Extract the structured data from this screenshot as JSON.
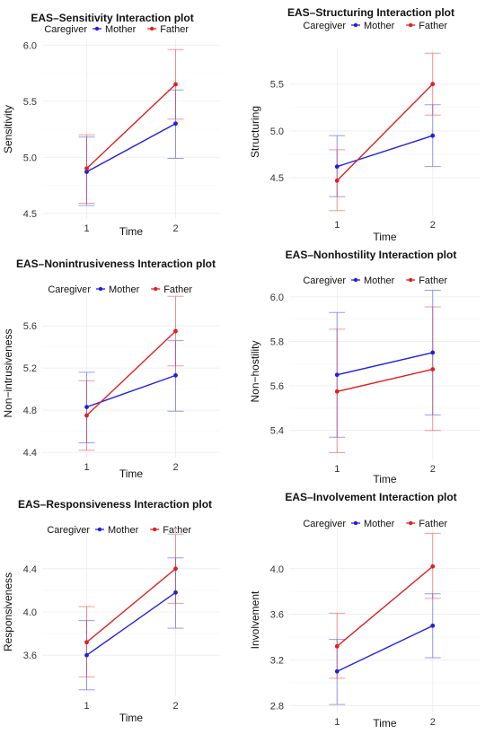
{
  "chart_data": [
    {
      "type": "line",
      "title": "EAS–Sensitivity Interaction plot",
      "xlabel": "Time",
      "ylabel": "Sensitivity",
      "legend_title": "Caregiver",
      "categories": [
        "1",
        "2"
      ],
      "yticks": [
        "4.5",
        "5.0",
        "5.5",
        "6.0"
      ],
      "ylim": [
        4.45,
        6.05
      ],
      "grid": true,
      "legend_placement": "top",
      "series": [
        {
          "name": "Mother",
          "color": "#1f1fe0",
          "values": [
            4.87,
            5.3
          ],
          "lower": [
            4.57,
            4.99
          ],
          "upper": [
            5.18,
            5.6
          ]
        },
        {
          "name": "Father",
          "color": "#e01f1f",
          "values": [
            4.9,
            5.65
          ],
          "lower": [
            4.59,
            5.34
          ],
          "upper": [
            5.2,
            5.96
          ]
        }
      ]
    },
    {
      "type": "line",
      "title": "EAS–Structuring Interaction plot",
      "xlabel": "Time",
      "ylabel": "Structuring",
      "legend_title": "Caregiver",
      "categories": [
        "1",
        "2"
      ],
      "yticks": [
        "4.5",
        "5.0",
        "5.5"
      ],
      "ylim": [
        4.1,
        5.88
      ],
      "grid": true,
      "legend_placement": "top",
      "series": [
        {
          "name": "Mother",
          "color": "#1f1fe0",
          "values": [
            4.62,
            4.95
          ],
          "lower": [
            4.3,
            4.62
          ],
          "upper": [
            4.95,
            5.28
          ]
        },
        {
          "name": "Father",
          "color": "#e01f1f",
          "values": [
            4.47,
            5.5
          ],
          "lower": [
            4.15,
            5.17
          ],
          "upper": [
            4.8,
            5.83
          ]
        }
      ]
    },
    {
      "type": "line",
      "title": "EAS–Nonintrusiveness Interaction plot",
      "xlabel": "Time",
      "ylabel": "Non−intrusiveness",
      "legend_title": "Caregiver",
      "categories": [
        "1",
        "2"
      ],
      "yticks": [
        "4.4",
        "4.8",
        "5.2",
        "5.6"
      ],
      "ylim": [
        4.35,
        5.95
      ],
      "grid": true,
      "legend_placement": "top",
      "series": [
        {
          "name": "Mother",
          "color": "#1f1fe0",
          "values": [
            4.83,
            5.13
          ],
          "lower": [
            4.49,
            4.79
          ],
          "upper": [
            5.16,
            5.46
          ]
        },
        {
          "name": "Father",
          "color": "#e01f1f",
          "values": [
            4.75,
            5.55
          ],
          "lower": [
            4.42,
            5.22
          ],
          "upper": [
            5.08,
            5.88
          ]
        }
      ]
    },
    {
      "type": "line",
      "title": "EAS–Nonhostility Interaction plot",
      "xlabel": "Time",
      "ylabel": "Non−hostility",
      "legend_title": "Caregiver",
      "categories": [
        "1",
        "2"
      ],
      "yticks": [
        "5.4",
        "5.6",
        "5.8",
        "6.0"
      ],
      "ylim": [
        5.27,
        6.06
      ],
      "grid": true,
      "legend_placement": "top",
      "series": [
        {
          "name": "Mother",
          "color": "#1f1fe0",
          "values": [
            5.65,
            5.75
          ],
          "lower": [
            5.37,
            5.47
          ],
          "upper": [
            5.93,
            6.03
          ]
        },
        {
          "name": "Father",
          "color": "#e01f1f",
          "values": [
            5.575,
            5.675
          ],
          "lower": [
            5.3,
            5.4
          ],
          "upper": [
            5.855,
            5.955
          ]
        }
      ]
    },
    {
      "type": "line",
      "title": "EAS–Responsiveness Interaction plot",
      "xlabel": "Time",
      "ylabel": "Responsiveness",
      "legend_title": "Caregiver",
      "categories": [
        "1",
        "2"
      ],
      "yticks": [
        "3.6",
        "4.0",
        "4.4"
      ],
      "ylim": [
        3.22,
        4.78
      ],
      "grid": true,
      "legend_placement": "top",
      "series": [
        {
          "name": "Mother",
          "color": "#1f1fe0",
          "values": [
            3.6,
            4.18
          ],
          "lower": [
            3.28,
            3.85
          ],
          "upper": [
            3.92,
            4.5
          ]
        },
        {
          "name": "Father",
          "color": "#e01f1f",
          "values": [
            3.72,
            4.4
          ],
          "lower": [
            3.4,
            4.08
          ],
          "upper": [
            4.05,
            4.72
          ]
        }
      ]
    },
    {
      "type": "line",
      "title": "EAS–Involvement Interaction plot",
      "xlabel": "Time",
      "ylabel": "Involvement",
      "legend_title": "Caregiver",
      "categories": [
        "1",
        "2"
      ],
      "yticks": [
        "2.8",
        "3.2",
        "3.6",
        "4.0"
      ],
      "ylim": [
        2.74,
        4.36
      ],
      "grid": true,
      "legend_placement": "top",
      "series": [
        {
          "name": "Mother",
          "color": "#1f1fe0",
          "values": [
            3.1,
            3.5
          ],
          "lower": [
            2.81,
            3.22
          ],
          "upper": [
            3.38,
            3.78
          ]
        },
        {
          "name": "Father",
          "color": "#e01f1f",
          "values": [
            3.32,
            4.02
          ],
          "lower": [
            3.04,
            3.74
          ],
          "upper": [
            3.61,
            4.31
          ]
        }
      ]
    }
  ]
}
